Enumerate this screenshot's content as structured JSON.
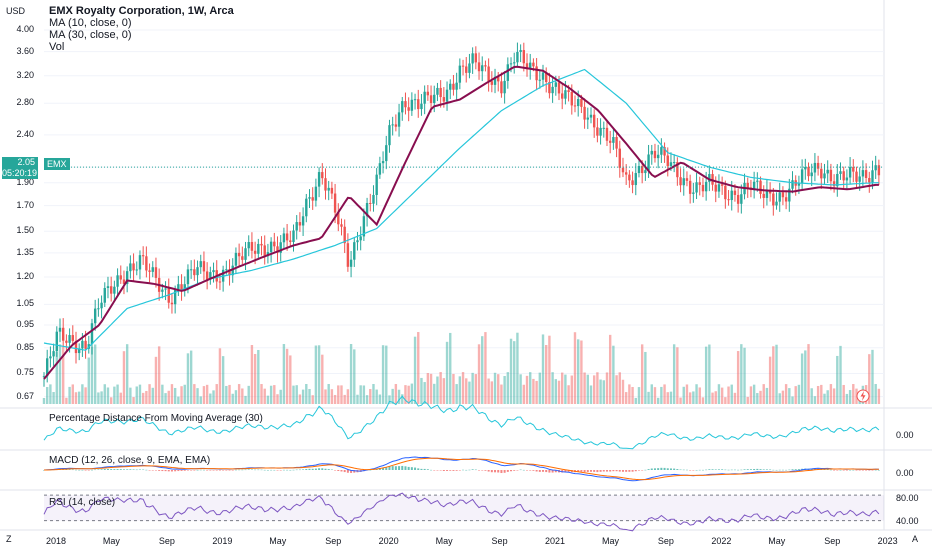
{
  "currency": "USD",
  "last_price": "2.05",
  "countdown": "05:20:19",
  "symbol_tag": "EMX",
  "legend": {
    "title": "EMX Royalty Corporation, 1W, Arca",
    "ma10": "MA (10, close, 0)",
    "ma30": "MA (30, close, 0)",
    "vol": "Vol"
  },
  "panes": {
    "pdma": "Percentage Distance From Moving Average (30)",
    "pdma_value": "0.00",
    "macd": "MACD (12, 26, close, 9, EMA, EMA)",
    "macd_value": "0.00",
    "rsi": "RSI (14, close)",
    "rsi_upper": "80.00",
    "rsi_lower": "40.00"
  },
  "price_ticks": [
    "4.00",
    "3.60",
    "3.20",
    "2.80",
    "2.40",
    "2.05",
    "1.90",
    "1.70",
    "1.50",
    "1.35",
    "1.20",
    "1.05",
    "0.95",
    "0.85",
    "0.75",
    "0.67"
  ],
  "x_ticks": [
    "2018",
    "May",
    "Sep",
    "2019",
    "May",
    "Sep",
    "2020",
    "May",
    "Sep",
    "2021",
    "May",
    "Sep",
    "2022",
    "May",
    "Sep",
    "2023"
  ],
  "corner_left": "Z",
  "corner_right": "A",
  "colors": {
    "up": "#26a69a",
    "down": "#ef5350",
    "ma10": "#880e4f",
    "ma30": "#26c6da",
    "osc": "#2962ff",
    "rsi": "#7e57c2",
    "macd": "#2962ff",
    "signal": "#ff6d00"
  },
  "chart_data": {
    "type": "line",
    "title": "EMX Royalty Corporation, 1W, Arca",
    "y_axis": {
      "scale": "log",
      "range": [
        0.64,
        4.2
      ],
      "unit": "USD"
    },
    "x_range": [
      "2018-01",
      "2023-01"
    ],
    "series": [
      {
        "name": "EMX",
        "x": [
          "2018-01",
          "2018-02",
          "2018-03",
          "2018-04",
          "2018-05",
          "2018-06",
          "2018-07",
          "2018-08",
          "2018-09",
          "2018-10",
          "2018-11",
          "2018-12",
          "2019-01",
          "2019-02",
          "2019-03",
          "2019-04",
          "2019-05",
          "2019-06",
          "2019-07",
          "2019-08",
          "2019-09",
          "2019-10",
          "2019-11",
          "2019-12",
          "2020-01",
          "2020-02",
          "2020-03",
          "2020-04",
          "2020-05",
          "2020-06",
          "2020-07",
          "2020-08",
          "2020-09",
          "2020-10",
          "2020-11",
          "2020-12",
          "2021-01",
          "2021-02",
          "2021-03",
          "2021-04",
          "2021-05",
          "2021-06",
          "2021-07",
          "2021-08",
          "2021-09",
          "2021-10",
          "2021-11",
          "2021-12",
          "2022-01",
          "2022-02",
          "2022-03",
          "2022-04",
          "2022-05",
          "2022-06",
          "2022-07",
          "2022-08",
          "2022-09",
          "2022-10",
          "2022-11",
          "2022-12",
          "2023-01"
        ],
        "values": [
          0.74,
          0.9,
          0.88,
          0.86,
          1.05,
          1.15,
          1.25,
          1.3,
          1.18,
          1.09,
          1.17,
          1.24,
          1.22,
          1.23,
          1.3,
          1.38,
          1.4,
          1.4,
          1.45,
          1.75,
          2.0,
          1.65,
          1.28,
          1.6,
          1.9,
          2.45,
          2.85,
          2.8,
          2.85,
          2.95,
          3.3,
          3.4,
          3.2,
          3.1,
          3.55,
          3.3,
          3.2,
          3.0,
          2.8,
          2.7,
          2.5,
          2.3,
          1.9,
          2.05,
          2.2,
          2.1,
          1.95,
          1.85,
          1.88,
          1.82,
          1.8,
          1.87,
          1.78,
          1.78,
          1.86,
          1.98,
          2.05,
          1.95,
          1.95,
          1.95,
          2.05
        ]
      },
      {
        "name": "MA (10, close, 0)",
        "x": [
          "2018-01",
          "2018-03",
          "2018-05",
          "2018-07",
          "2018-09",
          "2018-11",
          "2019-01",
          "2019-03",
          "2019-05",
          "2019-07",
          "2019-09",
          "2019-11",
          "2020-01",
          "2020-03",
          "2020-05",
          "2020-07",
          "2020-09",
          "2020-11",
          "2021-01",
          "2021-03",
          "2021-05",
          "2021-07",
          "2021-09",
          "2021-11",
          "2022-01",
          "2022-03",
          "2022-05",
          "2022-07",
          "2022-09",
          "2022-11",
          "2023-01"
        ],
        "values": [
          0.73,
          0.86,
          0.95,
          1.18,
          1.16,
          1.12,
          1.19,
          1.26,
          1.33,
          1.4,
          1.45,
          1.78,
          1.55,
          2.08,
          2.75,
          2.85,
          3.1,
          3.35,
          3.28,
          3.0,
          2.7,
          2.3,
          1.95,
          2.1,
          1.93,
          1.86,
          1.83,
          1.82,
          1.86,
          1.84,
          1.88
        ]
      },
      {
        "name": "MA (30, close, 0)",
        "x": [
          "2018-01",
          "2018-04",
          "2018-07",
          "2018-10",
          "2019-01",
          "2019-04",
          "2019-07",
          "2019-10",
          "2020-01",
          "2020-04",
          "2020-07",
          "2020-10",
          "2021-01",
          "2021-04",
          "2021-07",
          "2021-10",
          "2022-01",
          "2022-04",
          "2022-07",
          "2022-10",
          "2023-01"
        ],
        "values": [
          0.87,
          0.84,
          1.03,
          1.1,
          1.19,
          1.24,
          1.31,
          1.4,
          1.52,
          1.85,
          2.25,
          2.7,
          3.05,
          3.3,
          2.8,
          2.2,
          2.05,
          1.95,
          1.9,
          1.88,
          1.9
        ]
      }
    ],
    "indicators": {
      "pdma_last": 0.0,
      "macd_last": 0.0,
      "rsi_levels": [
        80,
        40
      ]
    }
  }
}
